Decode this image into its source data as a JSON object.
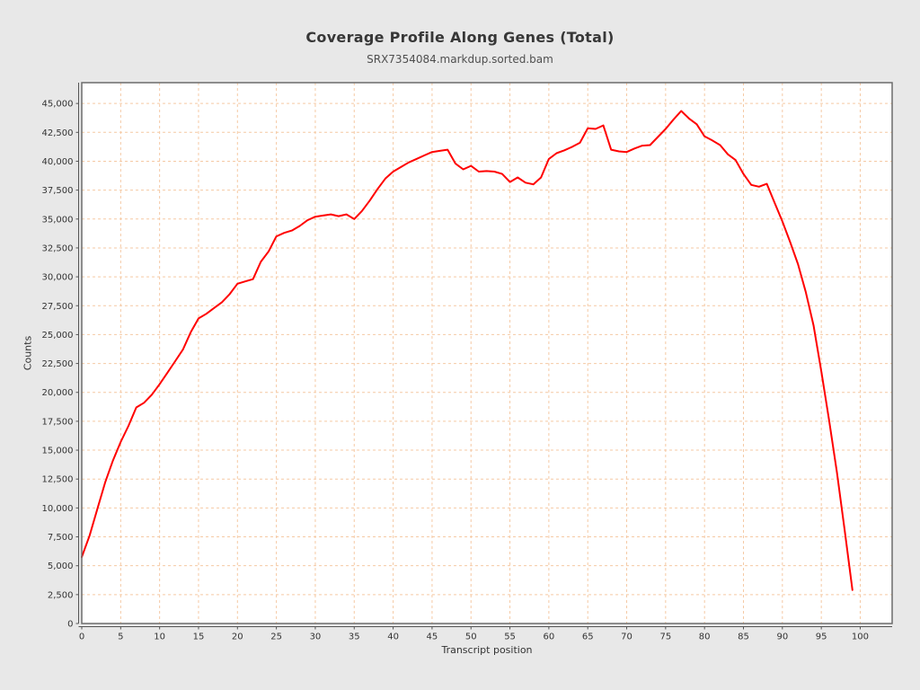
{
  "header": {
    "title": "Coverage Profile Along Genes (Total)",
    "subtitle": "SRX7354084.markdup.sorted.bam"
  },
  "chart_data": {
    "type": "line",
    "title": "Coverage Profile Along Genes (Total)",
    "subtitle": "SRX7354084.markdup.sorted.bam",
    "xlabel": "Transcript position",
    "ylabel": "Counts",
    "xlim": [
      0,
      104.1
    ],
    "ylim": [
      0,
      46800
    ],
    "grid": true,
    "legend_position": "none",
    "x_ticks": [
      0,
      5,
      10,
      15,
      20,
      25,
      30,
      35,
      40,
      45,
      50,
      55,
      60,
      65,
      70,
      75,
      80,
      85,
      90,
      95,
      100
    ],
    "y_ticks": [
      0,
      2500,
      5000,
      7500,
      10000,
      12500,
      15000,
      17500,
      20000,
      22500,
      25000,
      27500,
      30000,
      32500,
      35000,
      37500,
      40000,
      42500,
      45000
    ],
    "series": [
      {
        "name": "SRX7354084.markdup.sorted.bam",
        "color": "#ff0000",
        "x": [
          0,
          1,
          2,
          3,
          4,
          5,
          6,
          7,
          8,
          9,
          10,
          11,
          12,
          13,
          14,
          15,
          16,
          17,
          18,
          19,
          20,
          21,
          22,
          23,
          24,
          25,
          26,
          27,
          28,
          29,
          30,
          31,
          32,
          33,
          34,
          35,
          36,
          37,
          38,
          39,
          40,
          41,
          42,
          43,
          44,
          45,
          46,
          47,
          48,
          49,
          50,
          51,
          52,
          53,
          54,
          55,
          56,
          57,
          58,
          59,
          60,
          61,
          62,
          63,
          64,
          65,
          66,
          67,
          68,
          69,
          70,
          71,
          72,
          73,
          74,
          75,
          76,
          77,
          78,
          79,
          80,
          81,
          82,
          83,
          84,
          85,
          86,
          87,
          88,
          89,
          90,
          91,
          92,
          93,
          94,
          95,
          96,
          97,
          98,
          99
        ],
        "y": [
          5750,
          7600,
          9900,
          12200,
          14100,
          15700,
          17100,
          18700,
          19100,
          19800,
          20700,
          21700,
          22700,
          23700,
          25200,
          26400,
          26800,
          27300,
          27800,
          28500,
          29400,
          29600,
          29800,
          31300,
          32200,
          33500,
          33800,
          34000,
          34400,
          34900,
          35200,
          35300,
          35400,
          35250,
          35400,
          35000,
          35700,
          36600,
          37600,
          38500,
          39100,
          39500,
          39900,
          40200,
          40500,
          40800,
          40900,
          41000,
          39800,
          39300,
          39600,
          39100,
          39150,
          39100,
          38900,
          38200,
          38600,
          38150,
          38000,
          38600,
          40200,
          40700,
          40950,
          41250,
          41600,
          42850,
          42800,
          43100,
          41000,
          40850,
          40800,
          41100,
          41350,
          41400,
          42100,
          42800,
          43600,
          44350,
          43700,
          43200,
          42150,
          41800,
          41400,
          40600,
          40100,
          38900,
          37950,
          37800,
          38050,
          36400,
          34800,
          33000,
          31100,
          28700,
          25800,
          21800,
          17600,
          13100,
          8100,
          2900
        ]
      }
    ],
    "colors": {
      "page_background": "#e8e8e8",
      "plot_background": "#ffffff",
      "grid": "#f5c9a4",
      "plot_border": "#6b6b6b",
      "axis": "#545454",
      "tick_text": "#333333",
      "series_line": "#ff0000"
    }
  }
}
